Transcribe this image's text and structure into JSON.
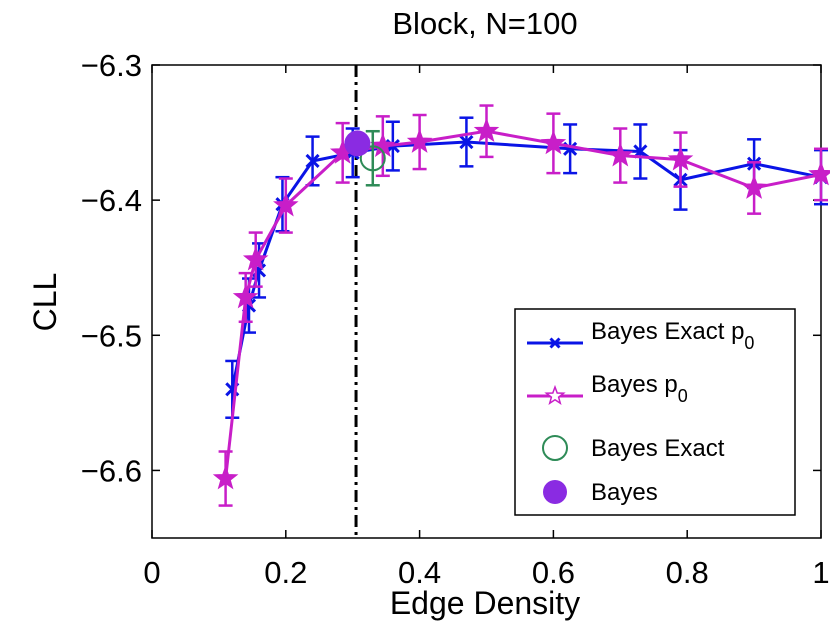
{
  "chart_data": {
    "type": "line",
    "title": "Block, N=100",
    "xlabel": "Edge Density",
    "ylabel": "CLL",
    "xlim": [
      0,
      1
    ],
    "ylim": [
      -6.65,
      -6.3
    ],
    "x_ticks": [
      0,
      0.2,
      0.4,
      0.6,
      0.8,
      1
    ],
    "x_tick_labels": [
      "0",
      "0.2",
      "0.4",
      "0.6",
      "0.8",
      "1"
    ],
    "y_ticks": [
      -6.3,
      -6.4,
      -6.5,
      -6.6
    ],
    "y_tick_labels": [
      "−6.3",
      "−6.4",
      "−6.5",
      "−6.6"
    ],
    "vertical_line": {
      "x": 0.305,
      "style": "dash-dot",
      "color": "#000000"
    },
    "series": [
      {
        "name": "Bayes Exact p",
        "subscript": "0",
        "marker": "x",
        "color": "#0a14e6",
        "x": [
          0.12,
          0.145,
          0.16,
          0.195,
          0.24,
          0.3,
          0.36,
          0.47,
          0.625,
          0.73,
          0.79,
          0.9,
          1.0
        ],
        "y": [
          -6.54,
          -6.478,
          -6.452,
          -6.403,
          -6.371,
          -6.365,
          -6.36,
          -6.357,
          -6.362,
          -6.364,
          -6.385,
          -6.373,
          -6.383
        ],
        "err": [
          0.021,
          0.02,
          0.02,
          0.02,
          0.018,
          0.018,
          0.018,
          0.018,
          0.018,
          0.02,
          0.022,
          0.018,
          0.02
        ]
      },
      {
        "name": "Bayes p",
        "subscript": "0",
        "marker": "star",
        "color": "#c81ec8",
        "x": [
          0.11,
          0.14,
          0.155,
          0.2,
          0.285,
          0.345,
          0.4,
          0.5,
          0.6,
          0.7,
          0.79,
          0.9,
          1.0
        ],
        "y": [
          -6.606,
          -6.472,
          -6.444,
          -6.404,
          -6.365,
          -6.36,
          -6.357,
          -6.349,
          -6.358,
          -6.367,
          -6.37,
          -6.391,
          -6.381
        ],
        "err": [
          0.02,
          0.018,
          0.02,
          0.02,
          0.022,
          0.022,
          0.02,
          0.019,
          0.022,
          0.02,
          0.02,
          0.019,
          0.019
        ]
      },
      {
        "name": "Bayes Exact",
        "marker": "open-circle",
        "color": "#2e8b57",
        "x": [
          0.33
        ],
        "y": [
          -6.369
        ],
        "err": [
          0.02
        ]
      },
      {
        "name": "Bayes",
        "marker": "filled-circle",
        "color": "#8a2be2",
        "x": [
          0.307
        ],
        "y": [
          -6.358
        ],
        "err": [
          0
        ]
      }
    ],
    "legend": {
      "position": "bottom-right",
      "entries": [
        {
          "label": "Bayes Exact p",
          "subscript": "0"
        },
        {
          "label": "Bayes p",
          "subscript": "0"
        },
        {
          "label": "Bayes Exact",
          "subscript": ""
        },
        {
          "label": "Bayes",
          "subscript": ""
        }
      ]
    }
  }
}
